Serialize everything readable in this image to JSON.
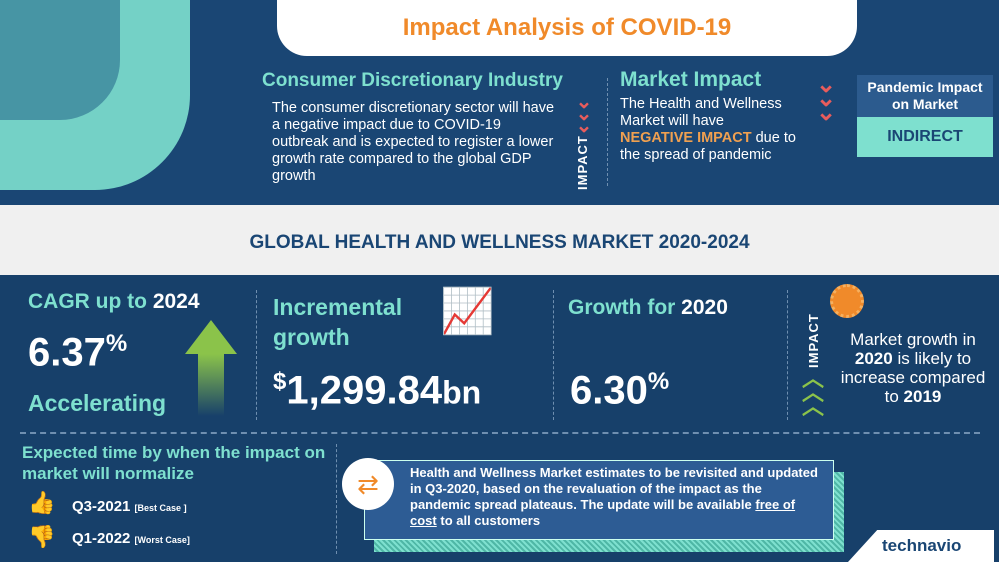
{
  "header": {
    "title": "Impact Analysis of COVID-19"
  },
  "industry": {
    "title": "Consumer Discretionary Industry",
    "text": "The consumer discretionary sector will have a negative impact due to COVID-19 outbreak and is expected to register a lower growth rate compared to the global GDP growth",
    "side_label": "IMPACT"
  },
  "market_impact": {
    "title": "Market Impact",
    "text_before": "The Health and Wellness Market will have",
    "highlight": "NEGATIVE IMPACT",
    "text_after": "due to the spread of pandemic"
  },
  "pandemic": {
    "label": "Pandemic Impact on Market",
    "value": "INDIRECT"
  },
  "band_title": "GLOBAL HEALTH AND WELLNESS MARKET 2020-2024",
  "cagr": {
    "label_prefix": "CAGR up to",
    "year": "2024",
    "value": "6.37",
    "unit": "%",
    "status": "Accelerating"
  },
  "incremental": {
    "label": "Incremental growth",
    "currency": "$",
    "value": "1,299.84",
    "unit": "bn"
  },
  "growth2020": {
    "label_prefix": "Growth for",
    "year": "2020",
    "value": "6.30",
    "unit": "%"
  },
  "impact2020": {
    "side_label": "IMPACT",
    "t1": "Market growth in",
    "year": "2020",
    "t2": "is likely to increase compared to",
    "year2": "2019"
  },
  "normalize": {
    "title": "Expected time by when the impact on market will normalize",
    "best": {
      "value": "Q3-2021",
      "tag": "[Best Case ]"
    },
    "worst": {
      "value": "Q1-2022",
      "tag": "[Worst Case]"
    }
  },
  "note": {
    "text_before": "Health and Wellness Market estimates to be revisited and updated in Q3-2020, based on the revaluation of the impact as the pandemic spread plateaus. The update will be available",
    "link": "free of cost",
    "text_after": "to all customers"
  },
  "brand": "technavio",
  "colors": {
    "accent_orange": "#f08a2a",
    "teal": "#7ee0cf",
    "navy": "#17406a",
    "negative_red": "#e85c5c",
    "positive_green": "#8bc34a"
  }
}
